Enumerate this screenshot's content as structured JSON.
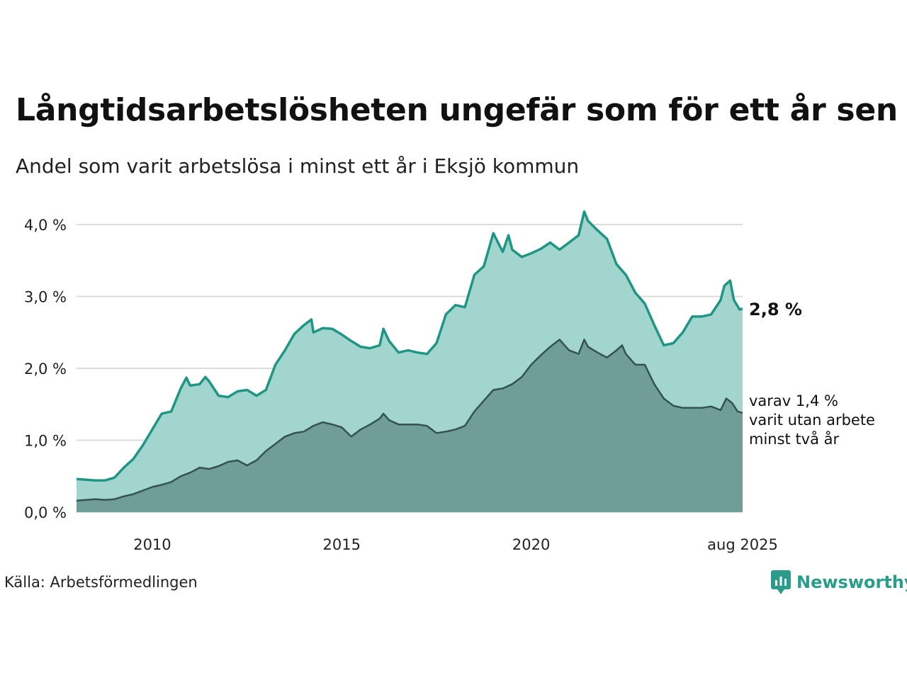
{
  "title": "Långtidsarbetslösheten ungefär som för ett år sen",
  "subtitle": "Andel som varit arbetslösa i minst ett år i Eksjö kommun",
  "source": "Källa: Arbetsförmedlingen",
  "brand": "Newsworthy",
  "colors": {
    "total_line": "#1f9683",
    "total_fill": "#a3d5cf",
    "sub_line": "#34524f",
    "sub_fill": "#6f9e98",
    "grid": "#dcdcdc",
    "brand": "#2a9d8a"
  },
  "chart_data": {
    "type": "area",
    "title": "Långtidsarbetslösheten ungefär som för ett år sen",
    "subtitle": "Andel som varit arbetslösa i minst ett år i Eksjö kommun",
    "xlabel": "",
    "ylabel": "",
    "xlim": [
      2008.0,
      2025.58
    ],
    "ylim": [
      0,
      4.0
    ],
    "yticks": [
      {
        "value": 0,
        "label": "0,0 %"
      },
      {
        "value": 1,
        "label": "1,0 %"
      },
      {
        "value": 2,
        "label": "2,0 %"
      },
      {
        "value": 3,
        "label": "3,0 %"
      },
      {
        "value": 4,
        "label": "4,0 %"
      }
    ],
    "xticks": [
      {
        "value": 2010,
        "label": "2010"
      },
      {
        "value": 2015,
        "label": "2015"
      },
      {
        "value": 2020,
        "label": "2020"
      },
      {
        "value": 2025.58,
        "label": "aug 2025"
      }
    ],
    "grid": true,
    "end_labels": {
      "total": "2,8 %",
      "sub": [
        "varav 1,4 %",
        "varit utan arbete",
        "minst två år"
      ]
    },
    "series": [
      {
        "key": "total",
        "points": [
          [
            2008.0,
            0.46
          ],
          [
            2008.25,
            0.45
          ],
          [
            2008.5,
            0.44
          ],
          [
            2008.75,
            0.44
          ],
          [
            2009.0,
            0.48
          ],
          [
            2009.25,
            0.62
          ],
          [
            2009.5,
            0.74
          ],
          [
            2009.75,
            0.93
          ],
          [
            2010.0,
            1.15
          ],
          [
            2010.25,
            1.37
          ],
          [
            2010.5,
            1.4
          ],
          [
            2010.75,
            1.72
          ],
          [
            2010.9,
            1.87
          ],
          [
            2011.0,
            1.76
          ],
          [
            2011.25,
            1.78
          ],
          [
            2011.4,
            1.88
          ],
          [
            2011.5,
            1.82
          ],
          [
            2011.75,
            1.62
          ],
          [
            2012.0,
            1.6
          ],
          [
            2012.25,
            1.68
          ],
          [
            2012.5,
            1.7
          ],
          [
            2012.75,
            1.62
          ],
          [
            2013.0,
            1.7
          ],
          [
            2013.25,
            2.05
          ],
          [
            2013.5,
            2.25
          ],
          [
            2013.75,
            2.48
          ],
          [
            2014.0,
            2.6
          ],
          [
            2014.2,
            2.68
          ],
          [
            2014.25,
            2.5
          ],
          [
            2014.5,
            2.56
          ],
          [
            2014.75,
            2.55
          ],
          [
            2015.0,
            2.47
          ],
          [
            2015.25,
            2.38
          ],
          [
            2015.5,
            2.3
          ],
          [
            2015.75,
            2.28
          ],
          [
            2016.0,
            2.32
          ],
          [
            2016.1,
            2.55
          ],
          [
            2016.25,
            2.38
          ],
          [
            2016.5,
            2.22
          ],
          [
            2016.75,
            2.25
          ],
          [
            2017.0,
            2.22
          ],
          [
            2017.25,
            2.2
          ],
          [
            2017.5,
            2.35
          ],
          [
            2017.75,
            2.75
          ],
          [
            2018.0,
            2.88
          ],
          [
            2018.25,
            2.85
          ],
          [
            2018.5,
            3.3
          ],
          [
            2018.75,
            3.42
          ],
          [
            2019.0,
            3.88
          ],
          [
            2019.25,
            3.62
          ],
          [
            2019.4,
            3.85
          ],
          [
            2019.5,
            3.65
          ],
          [
            2019.75,
            3.55
          ],
          [
            2020.0,
            3.6
          ],
          [
            2020.25,
            3.66
          ],
          [
            2020.5,
            3.75
          ],
          [
            2020.75,
            3.65
          ],
          [
            2021.0,
            3.75
          ],
          [
            2021.25,
            3.85
          ],
          [
            2021.4,
            4.18
          ],
          [
            2021.5,
            4.05
          ],
          [
            2021.75,
            3.92
          ],
          [
            2022.0,
            3.8
          ],
          [
            2022.25,
            3.45
          ],
          [
            2022.5,
            3.3
          ],
          [
            2022.75,
            3.05
          ],
          [
            2023.0,
            2.9
          ],
          [
            2023.25,
            2.6
          ],
          [
            2023.5,
            2.32
          ],
          [
            2023.75,
            2.35
          ],
          [
            2024.0,
            2.5
          ],
          [
            2024.25,
            2.72
          ],
          [
            2024.5,
            2.72
          ],
          [
            2024.75,
            2.75
          ],
          [
            2025.0,
            2.95
          ],
          [
            2025.1,
            3.15
          ],
          [
            2025.25,
            3.22
          ],
          [
            2025.35,
            2.95
          ],
          [
            2025.5,
            2.82
          ],
          [
            2025.58,
            2.83
          ]
        ]
      },
      {
        "key": "sub",
        "points": [
          [
            2008.0,
            0.16
          ],
          [
            2008.25,
            0.17
          ],
          [
            2008.5,
            0.18
          ],
          [
            2008.75,
            0.17
          ],
          [
            2009.0,
            0.18
          ],
          [
            2009.25,
            0.22
          ],
          [
            2009.5,
            0.25
          ],
          [
            2009.75,
            0.3
          ],
          [
            2010.0,
            0.35
          ],
          [
            2010.25,
            0.38
          ],
          [
            2010.5,
            0.42
          ],
          [
            2010.75,
            0.5
          ],
          [
            2011.0,
            0.55
          ],
          [
            2011.25,
            0.62
          ],
          [
            2011.5,
            0.6
          ],
          [
            2011.75,
            0.64
          ],
          [
            2012.0,
            0.7
          ],
          [
            2012.25,
            0.72
          ],
          [
            2012.5,
            0.65
          ],
          [
            2012.75,
            0.72
          ],
          [
            2013.0,
            0.85
          ],
          [
            2013.25,
            0.95
          ],
          [
            2013.5,
            1.05
          ],
          [
            2013.75,
            1.1
          ],
          [
            2014.0,
            1.12
          ],
          [
            2014.25,
            1.2
          ],
          [
            2014.5,
            1.25
          ],
          [
            2014.75,
            1.22
          ],
          [
            2015.0,
            1.18
          ],
          [
            2015.25,
            1.05
          ],
          [
            2015.5,
            1.15
          ],
          [
            2015.75,
            1.22
          ],
          [
            2016.0,
            1.3
          ],
          [
            2016.1,
            1.37
          ],
          [
            2016.25,
            1.28
          ],
          [
            2016.5,
            1.22
          ],
          [
            2016.75,
            1.22
          ],
          [
            2017.0,
            1.22
          ],
          [
            2017.25,
            1.2
          ],
          [
            2017.5,
            1.1
          ],
          [
            2017.75,
            1.12
          ],
          [
            2018.0,
            1.15
          ],
          [
            2018.25,
            1.2
          ],
          [
            2018.5,
            1.4
          ],
          [
            2018.75,
            1.55
          ],
          [
            2019.0,
            1.7
          ],
          [
            2019.25,
            1.72
          ],
          [
            2019.5,
            1.78
          ],
          [
            2019.75,
            1.88
          ],
          [
            2020.0,
            2.05
          ],
          [
            2020.25,
            2.18
          ],
          [
            2020.5,
            2.3
          ],
          [
            2020.75,
            2.4
          ],
          [
            2021.0,
            2.25
          ],
          [
            2021.25,
            2.2
          ],
          [
            2021.4,
            2.4
          ],
          [
            2021.5,
            2.3
          ],
          [
            2021.75,
            2.22
          ],
          [
            2022.0,
            2.15
          ],
          [
            2022.25,
            2.25
          ],
          [
            2022.4,
            2.32
          ],
          [
            2022.5,
            2.2
          ],
          [
            2022.75,
            2.05
          ],
          [
            2023.0,
            2.05
          ],
          [
            2023.25,
            1.78
          ],
          [
            2023.5,
            1.58
          ],
          [
            2023.75,
            1.48
          ],
          [
            2024.0,
            1.45
          ],
          [
            2024.25,
            1.45
          ],
          [
            2024.5,
            1.45
          ],
          [
            2024.75,
            1.47
          ],
          [
            2025.0,
            1.42
          ],
          [
            2025.15,
            1.58
          ],
          [
            2025.3,
            1.52
          ],
          [
            2025.45,
            1.4
          ],
          [
            2025.58,
            1.38
          ]
        ]
      }
    ]
  }
}
